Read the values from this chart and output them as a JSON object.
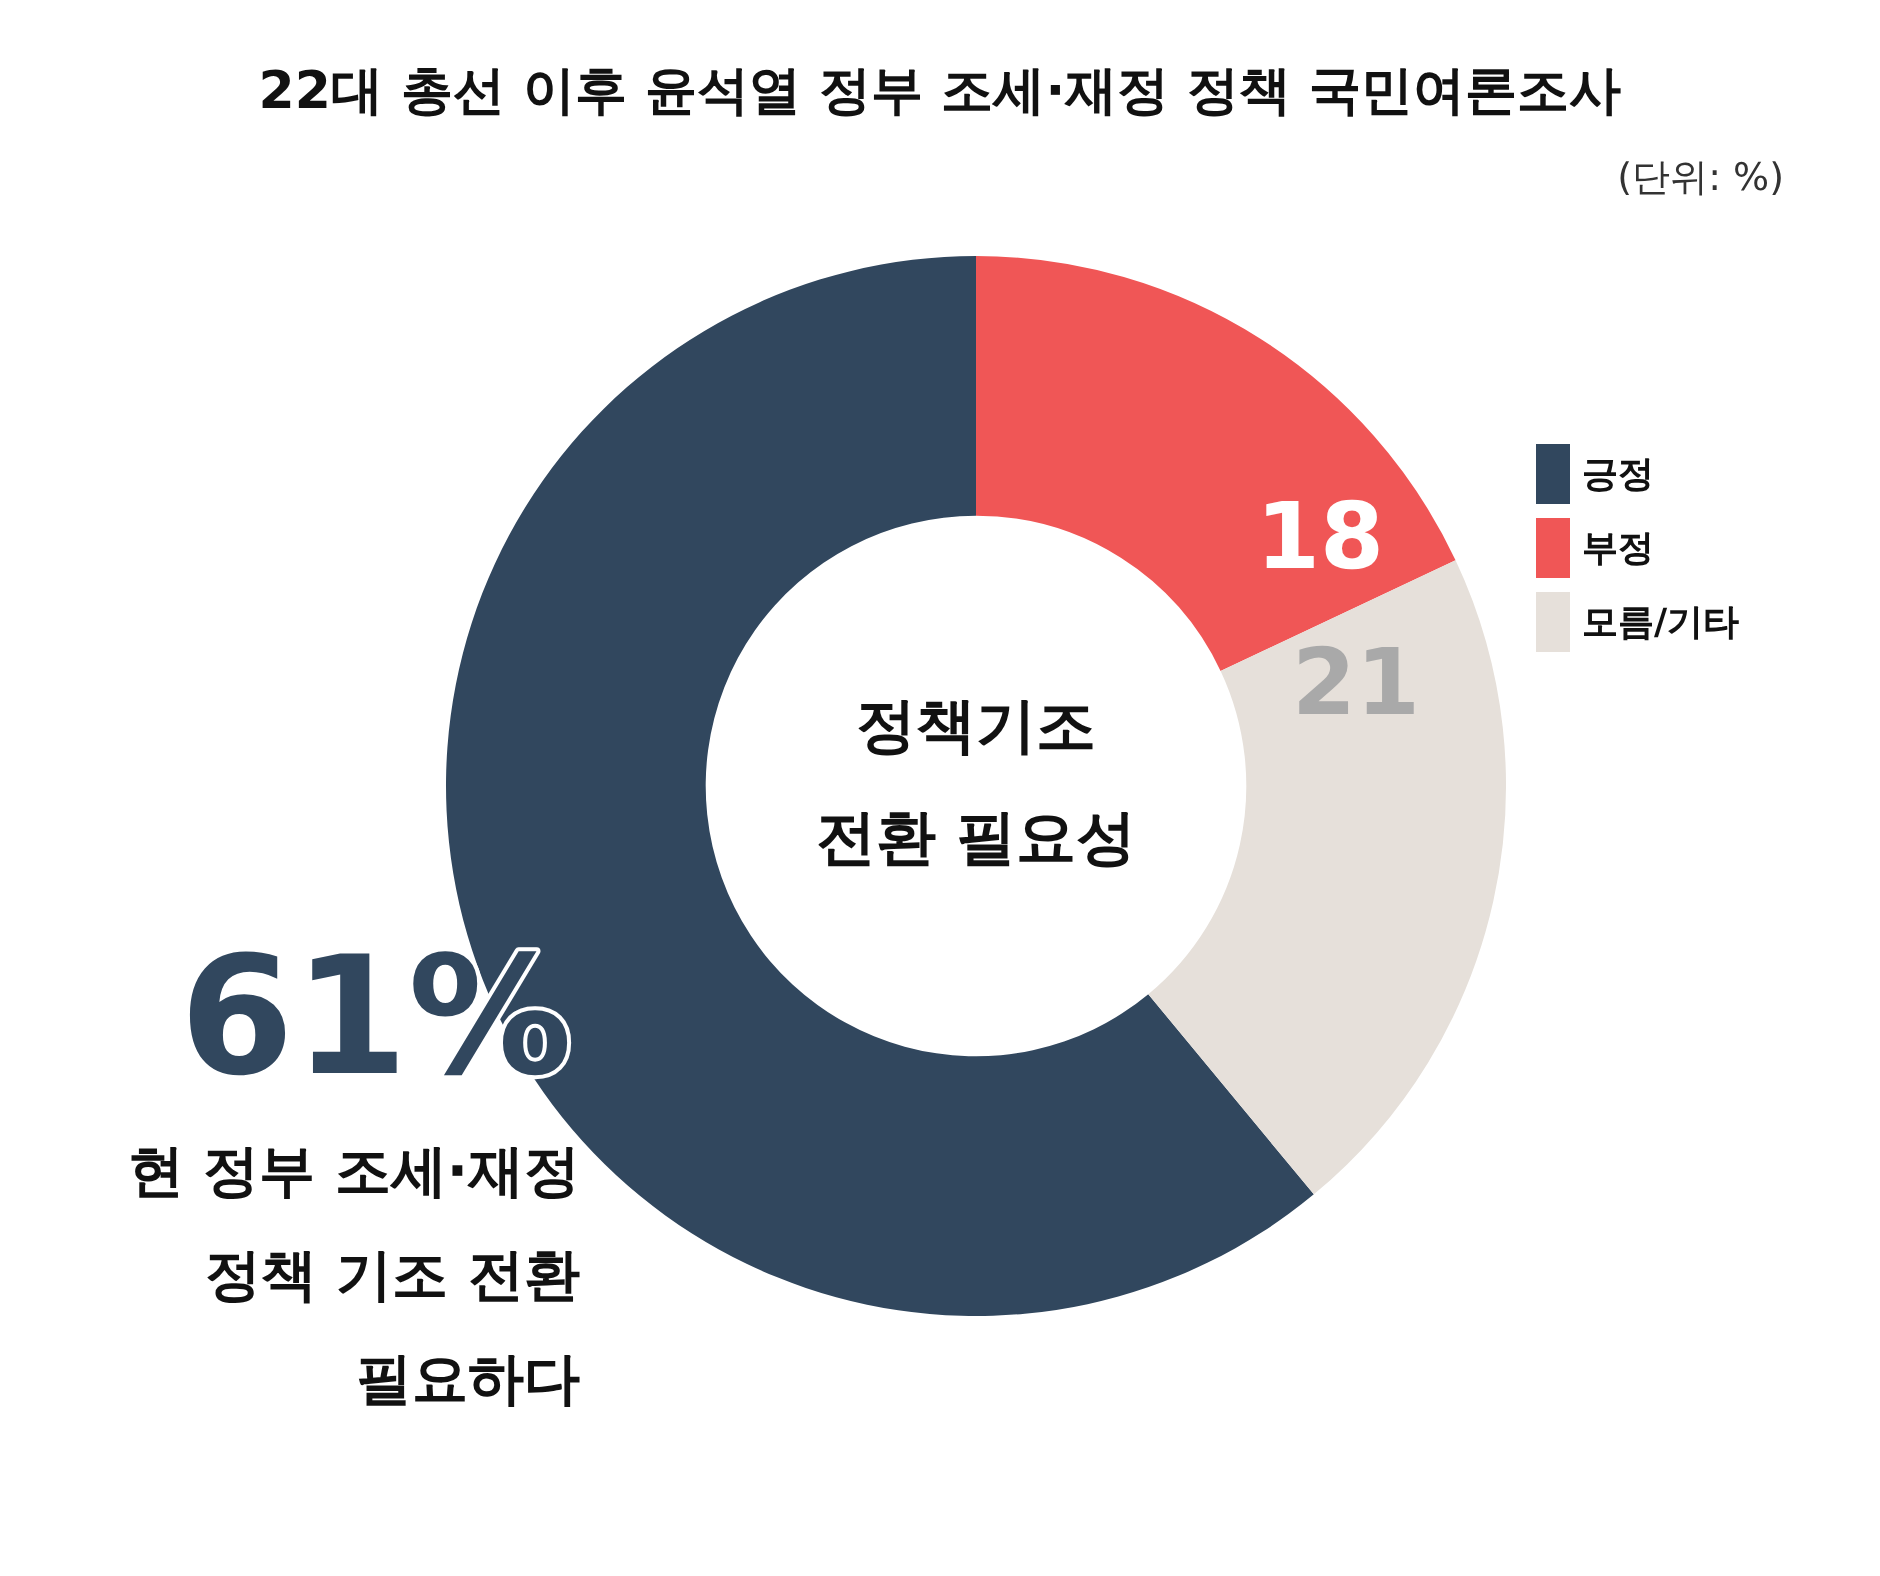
{
  "chart_data": {
    "type": "donut",
    "title": "22대 총선 이후 윤석열 정부 조세·재정 정책 국민여론조사",
    "subtitle": "(단위: %)",
    "categories": [
      "긍정",
      "부정",
      "모름/기타"
    ],
    "values": [
      61,
      18,
      21
    ],
    "colors": [
      "#31475e",
      "#f05656",
      "#e6e0da"
    ],
    "value_labels": [
      "61%",
      "18",
      "21"
    ],
    "legend": "right",
    "annotations": [
      "정책기조\n전환 필요성",
      "현 정부 조세·재정\n정책 기조 전환\n필요하다"
    ]
  }
}
